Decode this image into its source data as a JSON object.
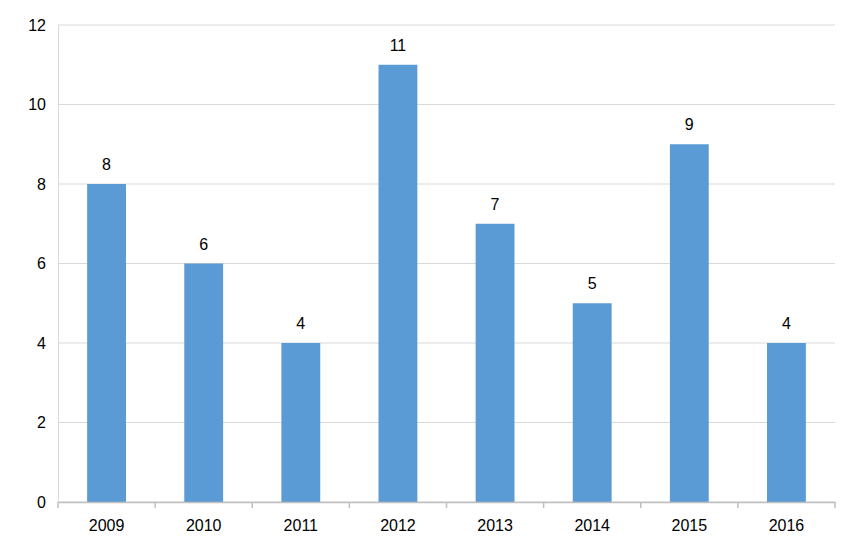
{
  "chart_data": {
    "type": "bar",
    "categories": [
      "2009",
      "2010",
      "2011",
      "2012",
      "2013",
      "2014",
      "2015",
      "2016"
    ],
    "values": [
      8,
      6,
      4,
      11,
      7,
      5,
      9,
      4
    ],
    "color": "#5b9bd5",
    "ylim": [
      0,
      12
    ],
    "yticks": [
      0,
      2,
      4,
      6,
      8,
      10,
      12
    ],
    "grid": true,
    "data_labels": true
  }
}
